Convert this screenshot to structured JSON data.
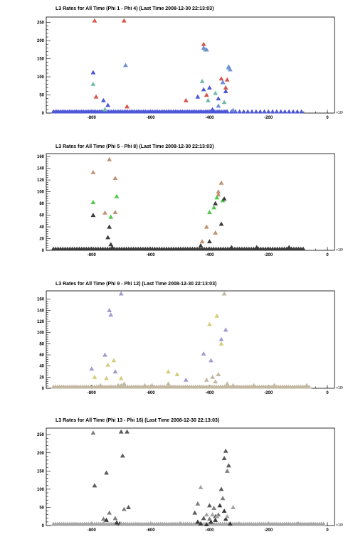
{
  "colors": {
    "red": "#d9534a",
    "blue": "#4c56d6",
    "teal": "#6fbaa9",
    "lightblue": "#6f8ed8",
    "darkgray": "#3a3a3a",
    "tan": "#c29272",
    "green": "#4fca4a",
    "lavender": "#a19ccf",
    "khaki": "#d6cc7d",
    "beige": "#c3b8a2",
    "gray": "#7f7f7f",
    "medgray": "#5a5a5a",
    "silver": "#a5a5a5"
  },
  "chart_data": [
    {
      "type": "scatter",
      "title": "L3 Rates for All Time (Phi 1 - Phi 4) (Last Time 2008-12-30 22:13:03)",
      "xlim": [
        -930,
        0
      ],
      "ylim": [
        0,
        265
      ],
      "x_ticks": [
        -800,
        -600,
        -400,
        -200,
        0
      ],
      "y_ticks": [
        0,
        50,
        100,
        150,
        200,
        250
      ],
      "x_exponent_label": "×10³",
      "baseline": {
        "y": 0,
        "x_start": -930,
        "x_end": -340,
        "step": 6,
        "color_key": "blue"
      },
      "baseline2": {
        "y": 0,
        "x_start": -340,
        "x_end": -80,
        "step": 14,
        "color_key": "blue"
      },
      "series": [
        {
          "color_key": "red",
          "x": [
            -790,
            -785,
            -690,
            -680,
            -480,
            -420,
            -410,
            -360,
            -340,
            -345
          ],
          "y": [
            255,
            45,
            255,
            18,
            35,
            190,
            50,
            95,
            92,
            70
          ]
        },
        {
          "color_key": "blue",
          "x": [
            -795,
            -760,
            -745,
            -440,
            -420,
            -400,
            -390,
            -370,
            -355,
            -345
          ],
          "y": [
            112,
            35,
            22,
            45,
            65,
            70,
            10,
            40,
            85,
            60
          ]
        },
        {
          "color_key": "teal",
          "x": [
            -795,
            -755,
            -425,
            -415,
            -405,
            -380,
            -350,
            -335
          ],
          "y": [
            80,
            10,
            88,
            175,
            35,
            55,
            30,
            125
          ]
        },
        {
          "color_key": "lightblue",
          "x": [
            -685,
            -420,
            -410,
            -370,
            -355,
            -335,
            -330,
            -320
          ],
          "y": [
            132,
            180,
            175,
            20,
            85,
            128,
            120,
            8
          ]
        }
      ]
    },
    {
      "type": "scatter",
      "title": "L3 Rates for All Time (Phi 5 - Phi 8) (Last Time 2008-12-30 22:13:03)",
      "xlim": [
        -930,
        0
      ],
      "ylim": [
        0,
        165
      ],
      "x_ticks": [
        -800,
        -600,
        -400,
        -200,
        0
      ],
      "y_ticks": [
        0,
        20,
        40,
        60,
        80,
        100,
        120,
        140,
        160
      ],
      "x_exponent_label": "×10³",
      "baseline": {
        "y": 0,
        "x_start": -930,
        "x_end": -80,
        "step": 8,
        "color_key": "darkgray"
      },
      "series": [
        {
          "color_key": "tan",
          "x": [
            -795,
            -755,
            -740,
            -720,
            -720,
            -425,
            -410,
            -380,
            -370,
            -360,
            -370
          ],
          "y": [
            133,
            64,
            155,
            123,
            65,
            15,
            40,
            30,
            95,
            115,
            100
          ]
        },
        {
          "color_key": "green",
          "x": [
            -795,
            -735,
            -715,
            -400,
            -385,
            -375,
            -355
          ],
          "y": [
            82,
            57,
            92,
            65,
            73,
            90,
            85
          ]
        },
        {
          "color_key": "darkgray",
          "x": [
            -795,
            -745,
            -740,
            -735,
            -730,
            -430,
            -400,
            -380,
            -360,
            -350,
            -325,
            -240,
            -130
          ],
          "y": [
            60,
            22,
            40,
            10,
            5,
            8,
            15,
            80,
            45,
            88,
            5,
            5,
            5
          ]
        }
      ]
    },
    {
      "type": "scatter",
      "title": "L3 Rates for All Time (Phi 9 - Phi 12) (Last Time 2008-12-30 22:13:03)",
      "xlim": [
        -930,
        0
      ],
      "ylim": [
        0,
        175
      ],
      "x_ticks": [
        -800,
        -600,
        -400,
        -200,
        0
      ],
      "y_ticks": [
        0,
        20,
        40,
        60,
        80,
        100,
        120,
        140,
        160
      ],
      "x_exponent_label": "×10³",
      "baseline": {
        "y": 0,
        "x_start": -930,
        "x_end": -60,
        "step": 7,
        "color_key": "beige"
      },
      "series": [
        {
          "color_key": "lavender",
          "x": [
            -800,
            -755,
            -740,
            -735,
            -720,
            -700,
            -480,
            -420,
            -395,
            -360,
            -345
          ],
          "y": [
            35,
            60,
            140,
            132,
            30,
            170,
            15,
            62,
            50,
            88,
            105
          ]
        },
        {
          "color_key": "khaki",
          "x": [
            -790,
            -750,
            -745,
            -725,
            -700,
            -540,
            -510,
            -400,
            -375,
            -360
          ],
          "y": [
            20,
            18,
            42,
            50,
            18,
            30,
            25,
            115,
            130,
            80
          ]
        },
        {
          "color_key": "beige",
          "x": [
            -770,
            -710,
            -700,
            -690,
            -620,
            -595,
            -540,
            -410,
            -390,
            -380,
            -370,
            -350,
            -340,
            -320,
            -250,
            -180,
            -70
          ],
          "y": [
            5,
            5,
            5,
            8,
            5,
            5,
            8,
            15,
            20,
            12,
            25,
            170,
            8,
            5,
            5,
            5,
            5
          ]
        }
      ]
    },
    {
      "type": "scatter",
      "title": "L3 Rates for All Time (Phi 13 - Phi 16) (Last Time 2008-12-30 22:13:03)",
      "xlim": [
        -930,
        0
      ],
      "ylim": [
        0,
        268
      ],
      "x_ticks": [
        -800,
        -600,
        -400,
        -200,
        0
      ],
      "y_ticks": [
        0,
        50,
        100,
        150,
        200,
        250
      ],
      "x_exponent_label": "×10³",
      "baseline": {
        "y": 0,
        "x_start": -930,
        "x_end": -10,
        "step": 7,
        "color_key": "silver"
      },
      "series": [
        {
          "color_key": "medgray",
          "x": [
            -790,
            -750,
            -700,
            -695,
            -680,
            -675,
            -450,
            -420,
            -400,
            -380,
            -360,
            -350,
            -345,
            -335
          ],
          "y": [
            110,
            145,
            258,
            192,
            258,
            50,
            35,
            20,
            55,
            25,
            100,
            185,
            205,
            165
          ]
        },
        {
          "color_key": "gray",
          "x": [
            -795,
            -760,
            -740,
            -720,
            -690,
            -440,
            -400,
            -385,
            -370,
            -355,
            -340
          ],
          "y": [
            255,
            18,
            35,
            20,
            45,
            60,
            18,
            48,
            30,
            75,
            150
          ]
        },
        {
          "color_key": "darkgray",
          "x": [
            -750,
            -715,
            -705,
            -440,
            -430,
            -410,
            -395,
            -380,
            -365,
            -350,
            -345,
            -330
          ],
          "y": [
            15,
            8,
            5,
            10,
            5,
            3,
            10,
            15,
            55,
            40,
            18,
            5
          ]
        },
        {
          "color_key": "silver",
          "x": [
            -800,
            -760,
            -700,
            -600,
            -500,
            -430,
            -410,
            -390,
            -375,
            -340,
            -320,
            -300,
            -200,
            -100
          ],
          "y": [
            5,
            5,
            5,
            5,
            5,
            105,
            30,
            30,
            25,
            25,
            50,
            5,
            5,
            5
          ]
        }
      ]
    }
  ]
}
